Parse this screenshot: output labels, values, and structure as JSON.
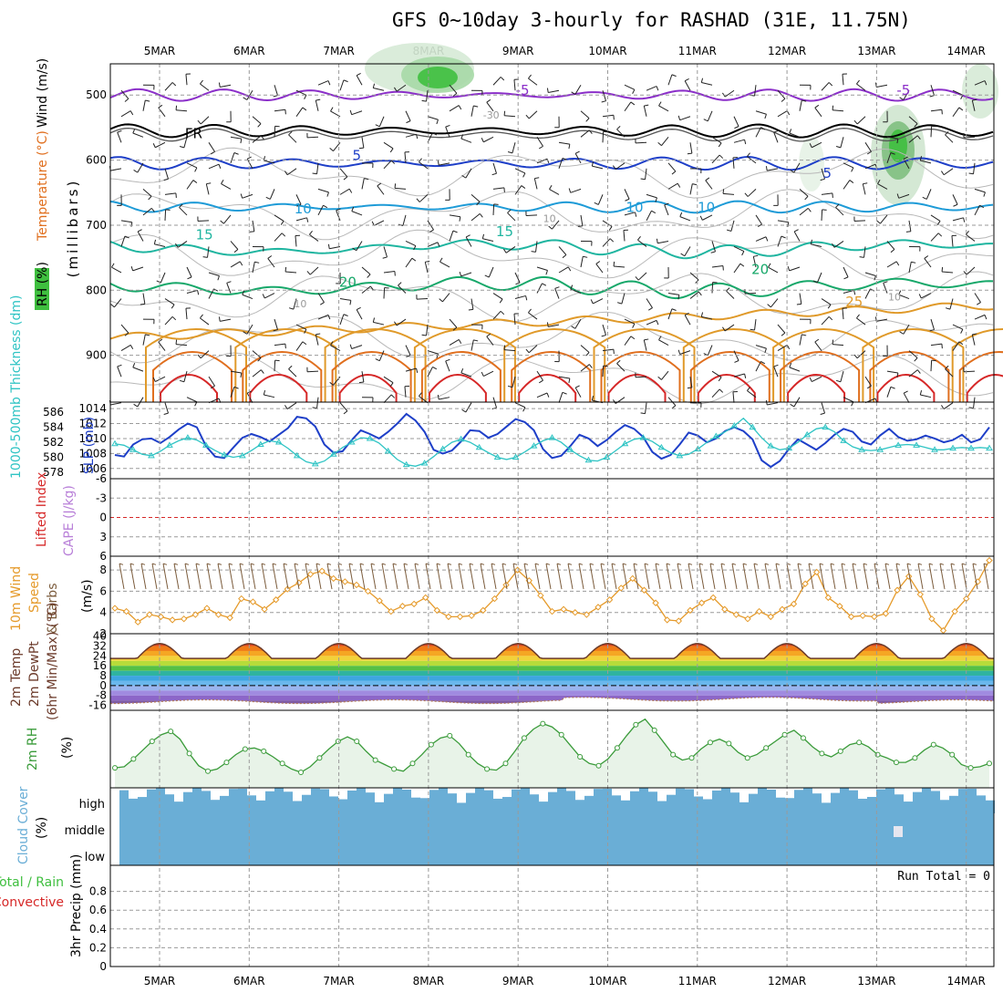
{
  "title": "GFS 0~10day 3-hourly for RASHAD (31E, 11.75N)",
  "chart_data": {
    "type": "meteogram",
    "dates": [
      "5MAR",
      "6MAR",
      "7MAR",
      "8MAR",
      "9MAR",
      "10MAR",
      "11MAR",
      "12MAR",
      "13MAR",
      "14MAR"
    ],
    "colors": {
      "rh_fill": "#a6d9a6",
      "rh_dark": "#3fbf3f",
      "temp_purple": "#8b2fc9",
      "temp_blue": "#1e3fc8",
      "temp_sky": "#1e9bd7",
      "temp_teal": "#1fb5a0",
      "temp_green": "#17a86a",
      "temp_orange": "#e09a2a",
      "temp_dark_orange": "#e06f1e",
      "temp_red": "#d62828",
      "slp": "#1e3fc8",
      "thickness": "#2fc4c4",
      "wind10": "#e59a2a",
      "rh2m": "#3a9b3a",
      "cloud": "#6aaed6",
      "precip_total": "#3fbf3f",
      "precip_conv": "#d62828"
    },
    "panels": [
      {
        "id": "upper-air",
        "ylabel_parts": [
          "RH (%)",
          "Temperature (°C)",
          "Wind (m/s)"
        ],
        "ylabel_axis": "(millibars)",
        "yticks": [
          500,
          600,
          700,
          800,
          900
        ],
        "ylim": [
          452,
          972
        ],
        "contour_labels": [
          {
            "text": "-5",
            "day": 4.05,
            "p": 500
          },
          {
            "text": "-5",
            "day": 8.3,
            "p": 500
          },
          {
            "text": "FR",
            "day": 0.38,
            "p": 566
          },
          {
            "text": "-30",
            "day": 3.7,
            "p": 536
          },
          {
            "text": "5",
            "day": 2.2,
            "p": 600
          },
          {
            "text": "5",
            "day": 7.45,
            "p": 627
          },
          {
            "text": "10",
            "day": 1.6,
            "p": 682
          },
          {
            "text": "10",
            "day": 5.3,
            "p": 680
          },
          {
            "text": "10",
            "day": 6.1,
            "p": 680
          },
          {
            "text": "10",
            "day": 4.35,
            "p": 695
          },
          {
            "text": "15",
            "day": 0.5,
            "p": 722
          },
          {
            "text": "15",
            "day": 3.85,
            "p": 717
          },
          {
            "text": "20",
            "day": 2.1,
            "p": 795
          },
          {
            "text": "20",
            "day": 6.7,
            "p": 775
          },
          {
            "text": "25",
            "day": 7.75,
            "p": 825
          },
          {
            "text": "10",
            "day": 1.57,
            "p": 826
          },
          {
            "text": "10",
            "day": 8.2,
            "p": 816
          }
        ],
        "isotherms": [
          {
            "name": "-5",
            "color_key": "temp_purple",
            "base": 500,
            "amp": 6
          },
          {
            "name": "FR",
            "color_key": "fr",
            "base": 555,
            "amp": 7
          },
          {
            "name": "5",
            "color_key": "temp_blue",
            "base": 605,
            "amp": 7
          },
          {
            "name": "10",
            "color_key": "temp_sky",
            "base": 672,
            "amp": 6
          },
          {
            "name": "15",
            "color_key": "temp_teal",
            "base": 735,
            "amp": 7
          },
          {
            "name": "20",
            "color_key": "temp_green",
            "base": 795,
            "amp": 9
          }
        ]
      },
      {
        "id": "slp-thickness",
        "ylabel_left": "1000-500mb Thickness (dm)",
        "ylabel_right": "SLP (mb)",
        "thickness_ticks": [
          578,
          580,
          582,
          584,
          586
        ],
        "slp_ticks": [
          1006,
          1008,
          1010,
          1012,
          1014
        ],
        "slp_ylim": [
          1005,
          1014.5
        ],
        "slp_values": [
          1007.8,
          1007.6,
          1009.2,
          1009.9,
          1010.0,
          1009.4,
          1010.2,
          1011.2,
          1012.0,
          1011.5,
          1009.0,
          1007.6,
          1007.4,
          1008.8,
          1010.1,
          1010.6,
          1010.2,
          1009.6,
          1010.5,
          1011.4,
          1012.9,
          1012.7,
          1011.6,
          1009.2,
          1008.1,
          1008.3,
          1009.8,
          1011.1,
          1010.6,
          1010.0,
          1010.9,
          1012.0,
          1013.3,
          1012.4,
          1010.9,
          1008.5,
          1008.0,
          1008.4,
          1009.6,
          1011.1,
          1011.0,
          1010.1,
          1010.6,
          1011.6,
          1012.6,
          1012.2,
          1011.1,
          1008.6,
          1007.4,
          1007.7,
          1009.0,
          1010.5,
          1010.0,
          1009.0,
          1009.8,
          1010.9,
          1011.8,
          1011.3,
          1010.2,
          1008.2,
          1007.3,
          1007.8,
          1009.2,
          1010.8,
          1010.4,
          1009.5,
          1010.0,
          1011.0,
          1011.5,
          1011.0,
          1009.9,
          1007.1,
          1006.2,
          1007.0,
          1008.6,
          1009.9,
          1009.2,
          1008.5,
          1009.4,
          1010.5,
          1011.3,
          1010.9,
          1009.6,
          1009.2,
          1010.4,
          1011.3,
          1010.2,
          1009.7,
          1009.9,
          1010.4,
          1010.0,
          1009.5,
          1009.8,
          1010.5,
          1009.5,
          1009.9,
          1011.5
        ],
        "thickness_values": [
          581.8,
          581.6,
          581.0,
          580.4,
          580.2,
          580.8,
          581.6,
          582.2,
          582.6,
          582.3,
          581.6,
          580.9,
          580.3,
          580.0,
          580.2,
          580.9,
          581.7,
          582.2,
          582.0,
          581.2,
          580.2,
          579.4,
          579.1,
          579.5,
          580.4,
          581.3,
          582.0,
          582.6,
          582.5,
          581.9,
          580.8,
          579.7,
          579.0,
          578.8,
          579.2,
          580.1,
          581.1,
          582.0,
          582.4,
          582.0,
          581.3,
          580.6,
          580.0,
          579.7,
          580.0,
          580.7,
          581.5,
          582.2,
          582.6,
          582.0,
          581.0,
          580.2,
          579.6,
          579.5,
          580.0,
          580.9,
          581.8,
          582.4,
          582.6,
          582.1,
          581.3,
          580.6,
          580.2,
          580.4,
          581.1,
          582.0,
          582.8,
          583.4,
          584.2,
          585.2,
          584.0,
          582.6,
          581.5,
          581.0,
          581.2,
          582.0,
          583.0,
          583.8,
          584.0,
          583.4,
          582.2,
          581.4,
          581.0,
          580.9,
          581.0,
          581.3,
          581.6,
          581.7,
          581.6,
          581.3,
          581.0,
          581.0,
          581.2,
          581.3,
          581.2,
          581.3,
          581.2
        ]
      },
      {
        "id": "lifted-index",
        "ylabel_left": "Lifted Index",
        "ylabel_right": "CAPE (J/kg)",
        "yticks": [
          "-6",
          "-3",
          "0",
          "3",
          "6"
        ],
        "ylim": [
          -6,
          6
        ],
        "li_values": []
      },
      {
        "id": "wind10m",
        "ylabel_left": "10m Wind",
        "ylabel_mid": "Speed",
        "ylabel_right": "& Barbs",
        "ylabel_unit": "(m/s)",
        "yticks": [
          2,
          4,
          6,
          8
        ],
        "ylim": [
          2,
          9.3
        ],
        "values": [
          4.4,
          4.1,
          3.1,
          3.8,
          3.6,
          3.3,
          3.4,
          3.8,
          4.4,
          3.8,
          3.5,
          5.3,
          5.0,
          4.3,
          5.2,
          6.2,
          6.8,
          7.6,
          7.9,
          7.2,
          6.9,
          6.6,
          6.0,
          5.1,
          4.1,
          4.6,
          4.8,
          5.4,
          4.2,
          3.6,
          3.6,
          3.7,
          4.2,
          5.3,
          6.6,
          8.0,
          7.0,
          5.6,
          4.1,
          4.3,
          4.0,
          3.8,
          4.5,
          5.2,
          6.3,
          7.2,
          6.1,
          4.9,
          3.3,
          3.2,
          4.2,
          4.9,
          5.4,
          4.3,
          3.8,
          3.4,
          4.1,
          3.6,
          4.3,
          4.8,
          6.7,
          7.8,
          5.4,
          4.6,
          3.6,
          3.7,
          3.6,
          3.9,
          6.1,
          7.4,
          5.7,
          3.4,
          2.3,
          4.1,
          5.3,
          6.9,
          8.9
        ]
      },
      {
        "id": "temp2m",
        "ylabel_left": "2m Temp",
        "ylabel_mid": "2m DewPt",
        "ylabel_right": "(6hr Min/Max) (°C)",
        "yticks": [
          40,
          32,
          24,
          16,
          8,
          0,
          -8,
          -16
        ],
        "ylim": [
          -20,
          42
        ],
        "temp_bands": [
          {
            "from": 36,
            "color": "#b91c1c"
          },
          {
            "from": 32,
            "color": "#e0431e"
          },
          {
            "from": 28,
            "color": "#f07b17"
          },
          {
            "from": 24,
            "color": "#f5a623"
          },
          {
            "from": 20,
            "color": "#f2d23a"
          },
          {
            "from": 16,
            "color": "#b7dc3a"
          },
          {
            "from": 12,
            "color": "#55c046"
          },
          {
            "from": 8,
            "color": "#2fb3a0"
          },
          {
            "from": 4,
            "color": "#3ea5e0"
          },
          {
            "from": 0,
            "color": "#6ab7ec"
          },
          {
            "from": -4,
            "color": "#9ab5ee"
          },
          {
            "from": -8,
            "color": "#a08be0"
          },
          {
            "from": -12,
            "color": "#8c66c8"
          },
          {
            "from": -16,
            "color": "#7d5aa6"
          },
          {
            "from": -20,
            "color": "#6b4c8a"
          }
        ]
      },
      {
        "id": "rh2m",
        "ylabel_left": "2m RH",
        "ylabel_unit": "(%)",
        "values": [
          18,
          19,
          26,
          34,
          42,
          48,
          51,
          44,
          31,
          20,
          15,
          17,
          23,
          30,
          35,
          36,
          33,
          28,
          22,
          17,
          14,
          19,
          27,
          35,
          42,
          46,
          42,
          33,
          25,
          21,
          17,
          15,
          22,
          30,
          39,
          45,
          47,
          40,
          30,
          22,
          17,
          16,
          22,
          33,
          45,
          53,
          58,
          55,
          48,
          38,
          28,
          22,
          20,
          26,
          36,
          47,
          57,
          62,
          52,
          41,
          30,
          25,
          27,
          35,
          41,
          44,
          40,
          32,
          27,
          30,
          36,
          42,
          48,
          52,
          45,
          37,
          31,
          28,
          33,
          39,
          41,
          37,
          30,
          27,
          23,
          23,
          27,
          34,
          39,
          36,
          30,
          21,
          18,
          19,
          22
        ]
      },
      {
        "id": "cloud",
        "ylabel_left": "Cloud Cover",
        "ylabel_unit": "(%)",
        "levels": [
          "high",
          "middle",
          "low"
        ]
      },
      {
        "id": "precip",
        "ylabel_left": "Total / Rain",
        "ylabel_mid": "Convective",
        "ylabel_right": "3hr Precip (mm)",
        "yticks": [
          "0",
          "0.2",
          "0.4",
          "0.6",
          "0.8"
        ],
        "ylim": [
          0,
          1
        ],
        "run_total": "Run Total = 0"
      }
    ]
  }
}
